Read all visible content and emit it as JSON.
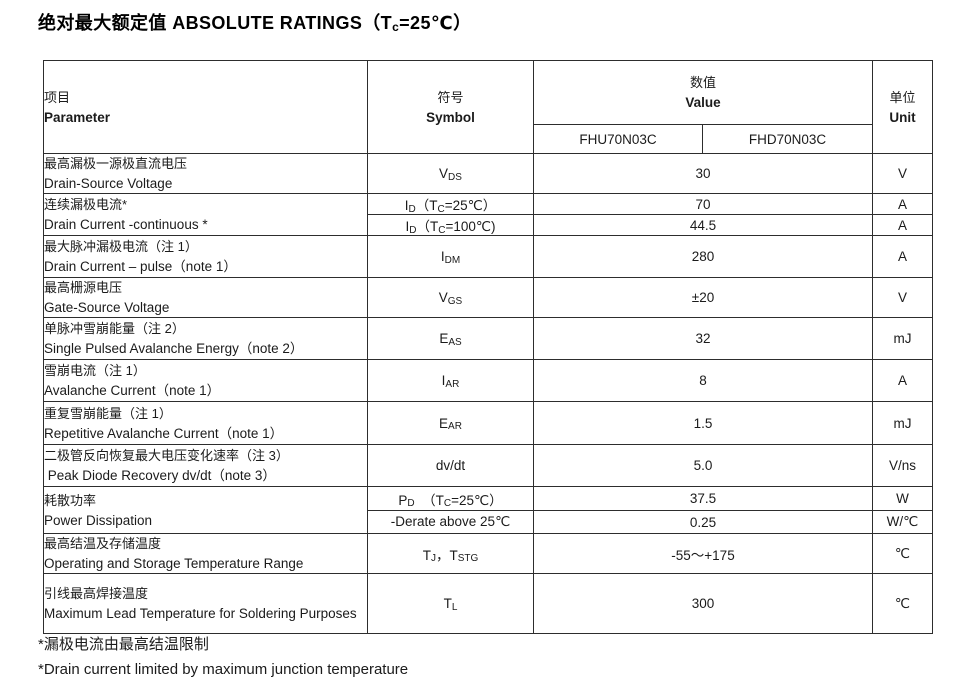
{
  "title": "绝对最大额定值 ABSOLUTE RATINGS（T_{c}=25℃）",
  "table": {
    "header": {
      "param_zh": "项目",
      "param_en": "Parameter",
      "symbol_zh": "符号",
      "symbol_en": "Symbol",
      "value_zh": "数值",
      "value_en": "Value",
      "unit_zh": "单位",
      "unit_en": "Unit",
      "model_1": "FHU70N03C",
      "model_2": "FHD70N03C"
    },
    "rows": {
      "vds": {
        "zh": "最高漏极一源极直流电压",
        "en": "Drain-Source Voltage",
        "sym": "V_{DS}",
        "val": "30",
        "unit": "V"
      },
      "id": {
        "zh": "连续漏极电流*",
        "en": "Drain Current -continuous *",
        "sym_a": "I_{D}（T_{C}=25℃）",
        "val_a": "70",
        "unit_a": "A",
        "sym_b": "I_{D}（T_{C}=100℃)",
        "val_b": "44.5",
        "unit_b": "A"
      },
      "idm": {
        "zh": "最大脉冲漏极电流（注 1）",
        "en": "Drain Current – pulse（note 1）",
        "sym": "I_{DM}",
        "val": "280",
        "unit": "A"
      },
      "vgs": {
        "zh": "最高栅源电压",
        "en": "Gate-Source Voltage",
        "sym": "V_{GS}",
        "val": "±20",
        "unit": "V"
      },
      "eas": {
        "zh": "单脉冲雪崩能量（注 2）",
        "en": "Single Pulsed Avalanche Energy（note 2）",
        "sym": "E_{AS}",
        "val": "32",
        "unit": "mJ"
      },
      "iar": {
        "zh": "雪崩电流（注 1）",
        "en": "Avalanche Current（note 1）",
        "sym": "I_{AR}",
        "val": "8",
        "unit": "A"
      },
      "ear": {
        "zh": "重复雪崩能量（注 1）",
        "en": "Repetitive Avalanche Current（note 1）",
        "sym": "E_{AR}",
        "val": "1.5",
        "unit": "mJ"
      },
      "dvdt": {
        "zh": "二极管反向恢复最大电压变化速率（注 3）",
        "en": " Peak Diode Recovery dv/dt（note 3）",
        "sym": "dv/dt",
        "val": "5.0",
        "unit": "V/ns"
      },
      "pd": {
        "zh": "耗散功率",
        "en": "Power Dissipation",
        "sym_a": "P_{D}  （T_{C}=25℃）",
        "val_a": "37.5",
        "unit_a": "W",
        "sym_b": "-Derate above 25℃",
        "val_b": "0.25",
        "unit_b": "W/℃"
      },
      "tj": {
        "zh": "最高结温及存储温度",
        "en": "Operating and Storage Temperature Range",
        "sym": "T_{J}，T_{STG}",
        "val": "-55～+175",
        "unit": "℃"
      },
      "tl": {
        "zh": "引线最高焊接温度",
        "en": "Maximum Lead Temperature for Soldering Purposes",
        "sym": "T_{L}",
        "val": "300",
        "unit": "℃"
      }
    }
  },
  "footnotes": {
    "zh": "*漏极电流由最高结温限制",
    "en": "*Drain current limited by maximum junction temperature"
  }
}
